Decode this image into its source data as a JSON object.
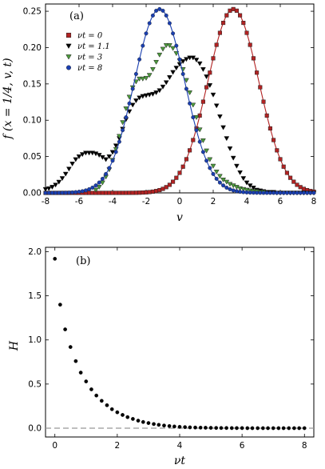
{
  "chart_data": [
    {
      "type": "scatter",
      "panel_tag": "(a)",
      "xlabel": "v",
      "ylabel": "f (x = 1/4, v, t)",
      "xlim": [
        -8,
        8
      ],
      "ylim": [
        0,
        0.26
      ],
      "x_ticks": [
        "-8",
        "-6",
        "-4",
        "-2",
        "0",
        "2",
        "4",
        "6",
        "8"
      ],
      "y_ticks": [
        "0.00",
        "0.05",
        "0.10",
        "0.15",
        "0.20",
        "0.25"
      ],
      "legend_position": "top-left",
      "series": [
        {
          "name": "νt = 0",
          "marker": "square",
          "color": "#b22222",
          "fit_curve": true,
          "mu": 3.2,
          "sigma": 1.52,
          "amplitude": 0.253
        },
        {
          "name": "νt = 1.1",
          "marker": "triangle-down",
          "color": "#000000",
          "fit_curve": false,
          "points": [
            [
              -8.0,
              0.005
            ],
            [
              -7.8,
              0.006
            ],
            [
              -7.6,
              0.008
            ],
            [
              -7.4,
              0.011
            ],
            [
              -7.2,
              0.015
            ],
            [
              -7.0,
              0.02
            ],
            [
              -6.8,
              0.026
            ],
            [
              -6.6,
              0.033
            ],
            [
              -6.4,
              0.04
            ],
            [
              -6.2,
              0.046
            ],
            [
              -6.0,
              0.05
            ],
            [
              -5.8,
              0.053
            ],
            [
              -5.6,
              0.055
            ],
            [
              -5.4,
              0.055
            ],
            [
              -5.2,
              0.055
            ],
            [
              -5.0,
              0.054
            ],
            [
              -4.8,
              0.052
            ],
            [
              -4.6,
              0.049
            ],
            [
              -4.4,
              0.046
            ],
            [
              -4.2,
              0.05
            ],
            [
              -4.0,
              0.056
            ],
            [
              -3.8,
              0.065
            ],
            [
              -3.6,
              0.075
            ],
            [
              -3.4,
              0.088
            ],
            [
              -3.2,
              0.101
            ],
            [
              -3.0,
              0.112
            ],
            [
              -2.8,
              0.121
            ],
            [
              -2.6,
              0.127
            ],
            [
              -2.4,
              0.131
            ],
            [
              -2.2,
              0.133
            ],
            [
              -2.0,
              0.134
            ],
            [
              -1.8,
              0.135
            ],
            [
              -1.6,
              0.136
            ],
            [
              -1.4,
              0.138
            ],
            [
              -1.2,
              0.141
            ],
            [
              -1.0,
              0.146
            ],
            [
              -0.8,
              0.152
            ],
            [
              -0.6,
              0.159
            ],
            [
              -0.4,
              0.166
            ],
            [
              -0.2,
              0.172
            ],
            [
              0.0,
              0.177
            ],
            [
              0.2,
              0.181
            ],
            [
              0.4,
              0.184
            ],
            [
              0.6,
              0.186
            ],
            [
              0.8,
              0.186
            ],
            [
              1.0,
              0.183
            ],
            [
              1.2,
              0.178
            ],
            [
              1.4,
              0.17
            ],
            [
              1.6,
              0.16
            ],
            [
              1.8,
              0.148
            ],
            [
              2.0,
              0.135
            ],
            [
              2.2,
              0.12
            ],
            [
              2.4,
              0.105
            ],
            [
              2.6,
              0.09
            ],
            [
              2.8,
              0.075
            ],
            [
              3.0,
              0.061
            ],
            [
              3.2,
              0.048
            ],
            [
              3.4,
              0.037
            ],
            [
              3.6,
              0.028
            ],
            [
              3.8,
              0.02
            ],
            [
              4.0,
              0.014
            ],
            [
              4.2,
              0.01
            ],
            [
              4.4,
              0.007
            ],
            [
              4.6,
              0.004
            ],
            [
              4.8,
              0.003
            ],
            [
              5.0,
              0.002
            ],
            [
              5.2,
              0.001
            ],
            [
              5.4,
              0.001
            ],
            [
              5.6,
              0.001
            ],
            [
              5.8,
              0.0
            ],
            [
              6.0,
              0.0
            ],
            [
              6.2,
              0.0
            ],
            [
              6.4,
              0.0
            ],
            [
              6.6,
              0.0
            ],
            [
              6.8,
              0.0
            ],
            [
              7.0,
              0.0
            ],
            [
              7.2,
              0.0
            ],
            [
              7.4,
              0.0
            ],
            [
              7.6,
              0.0
            ],
            [
              7.8,
              0.0
            ],
            [
              8.0,
              0.0
            ]
          ]
        },
        {
          "name": "νt = 3",
          "marker": "triangle-down",
          "color": "#4c9a3c",
          "fit_curve": false,
          "points": [
            [
              -5.0,
              0.004
            ],
            [
              -4.8,
              0.008
            ],
            [
              -4.6,
              0.014
            ],
            [
              -4.4,
              0.022
            ],
            [
              -4.2,
              0.032
            ],
            [
              -4.0,
              0.045
            ],
            [
              -3.8,
              0.06
            ],
            [
              -3.6,
              0.078
            ],
            [
              -3.4,
              0.097
            ],
            [
              -3.2,
              0.116
            ],
            [
              -3.0,
              0.132
            ],
            [
              -2.8,
              0.145
            ],
            [
              -2.6,
              0.153
            ],
            [
              -2.4,
              0.157
            ],
            [
              -2.2,
              0.157
            ],
            [
              -2.0,
              0.158
            ],
            [
              -1.8,
              0.162
            ],
            [
              -1.6,
              0.17
            ],
            [
              -1.4,
              0.18
            ],
            [
              -1.2,
              0.19
            ],
            [
              -1.0,
              0.198
            ],
            [
              -0.8,
              0.203
            ],
            [
              -0.6,
              0.203
            ],
            [
              -0.4,
              0.199
            ],
            [
              -0.2,
              0.192
            ],
            [
              0.0,
              0.182
            ],
            [
              0.2,
              0.17
            ],
            [
              0.4,
              0.155
            ],
            [
              0.6,
              0.138
            ],
            [
              0.8,
              0.121
            ],
            [
              1.0,
              0.104
            ],
            [
              1.2,
              0.087
            ],
            [
              1.4,
              0.072
            ],
            [
              1.6,
              0.058
            ],
            [
              1.8,
              0.046
            ],
            [
              2.0,
              0.037
            ],
            [
              2.2,
              0.029
            ],
            [
              2.4,
              0.023
            ],
            [
              2.6,
              0.018
            ],
            [
              2.8,
              0.015
            ],
            [
              3.0,
              0.012
            ],
            [
              3.2,
              0.01
            ],
            [
              3.4,
              0.008
            ],
            [
              3.6,
              0.006
            ],
            [
              3.8,
              0.005
            ],
            [
              4.0,
              0.004
            ],
            [
              4.2,
              0.003
            ],
            [
              4.4,
              0.002
            ],
            [
              4.6,
              0.002
            ],
            [
              4.8,
              0.001
            ],
            [
              5.0,
              0.001
            ]
          ]
        },
        {
          "name": "νt = 8",
          "marker": "circle",
          "color": "#1a3fb0",
          "fit_curve": true,
          "mu": -1.2,
          "sigma": 1.5,
          "amplitude": 0.253
        }
      ]
    },
    {
      "type": "scatter",
      "panel_tag": "(b)",
      "xlabel": "νt",
      "ylabel": "H",
      "xlim": [
        -0.3,
        8.3
      ],
      "ylim": [
        -0.1,
        2.05
      ],
      "x_ticks": [
        "0",
        "2",
        "4",
        "6",
        "8"
      ],
      "y_ticks": [
        "0.0",
        "0.5",
        "1.0",
        "1.5",
        "2.0"
      ],
      "reference_line": 0,
      "series": [
        {
          "marker": "circle",
          "color": "#000000",
          "points": [
            [
              0.0,
              1.92
            ],
            [
              0.17,
              1.4
            ],
            [
              0.33,
              1.12
            ],
            [
              0.5,
              0.92
            ],
            [
              0.67,
              0.76
            ],
            [
              0.83,
              0.63
            ],
            [
              1.0,
              0.53
            ],
            [
              1.17,
              0.44
            ],
            [
              1.33,
              0.37
            ],
            [
              1.5,
              0.31
            ],
            [
              1.67,
              0.26
            ],
            [
              1.83,
              0.215
            ],
            [
              2.0,
              0.18
            ],
            [
              2.17,
              0.15
            ],
            [
              2.33,
              0.125
            ],
            [
              2.5,
              0.105
            ],
            [
              2.67,
              0.085
            ],
            [
              2.83,
              0.07
            ],
            [
              3.0,
              0.058
            ],
            [
              3.17,
              0.047
            ],
            [
              3.33,
              0.038
            ],
            [
              3.5,
              0.03
            ],
            [
              3.67,
              0.024
            ],
            [
              3.83,
              0.019
            ],
            [
              4.0,
              0.015
            ],
            [
              4.17,
              0.012
            ],
            [
              4.33,
              0.009
            ],
            [
              4.5,
              0.007
            ],
            [
              4.67,
              0.006
            ],
            [
              4.83,
              0.005
            ],
            [
              5.0,
              0.004
            ],
            [
              5.17,
              0.003
            ],
            [
              5.33,
              0.002
            ],
            [
              5.5,
              0.002
            ],
            [
              5.67,
              0.001
            ],
            [
              5.83,
              0.001
            ],
            [
              6.0,
              0.001
            ],
            [
              6.17,
              0.0
            ],
            [
              6.33,
              0.0
            ],
            [
              6.5,
              0.0
            ],
            [
              6.67,
              0.0
            ],
            [
              6.83,
              0.0
            ],
            [
              7.0,
              0.0
            ],
            [
              7.17,
              0.0
            ],
            [
              7.33,
              0.0
            ],
            [
              7.5,
              0.0
            ],
            [
              7.67,
              0.0
            ],
            [
              7.83,
              0.0
            ],
            [
              8.0,
              0.0
            ]
          ]
        }
      ]
    }
  ]
}
